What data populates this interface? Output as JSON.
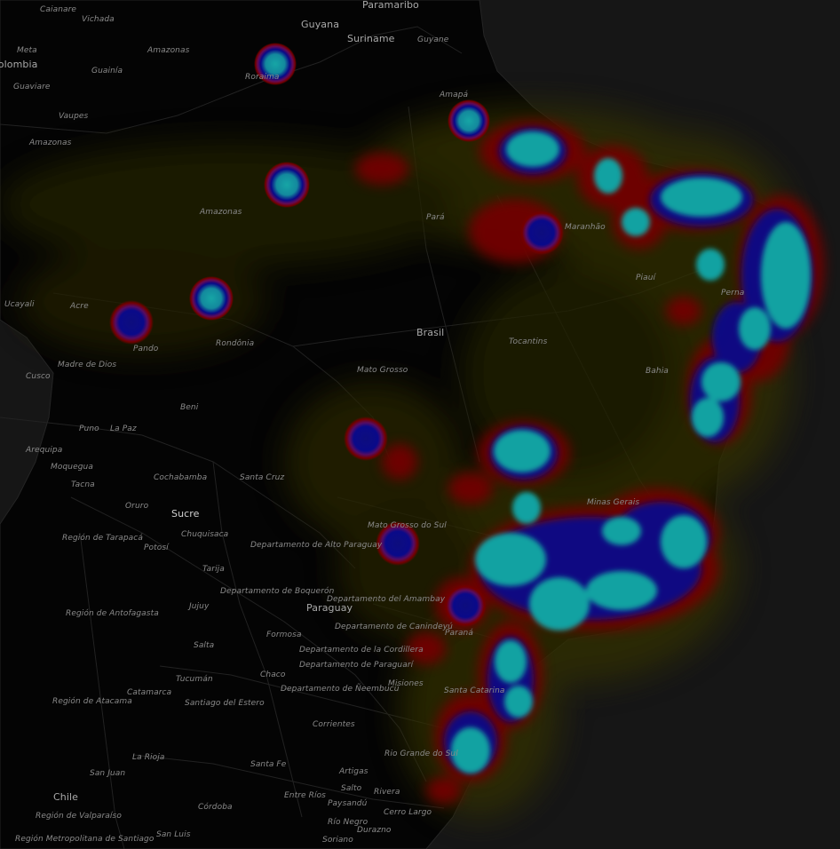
{
  "map": {
    "title": "",
    "colors": {
      "background": "#121212",
      "land": "#050505",
      "ocean": "#1b1b1b",
      "borders": "#2a2a2a",
      "heat_low": "#3d3a00",
      "heat_mid": "#8b0000",
      "heat_high": "#0a0aa8",
      "heat_peak": "#19c6c6"
    },
    "labels": {
      "paramaribo": "Paramaribo",
      "caianare": "Caianare",
      "vichada": "Vichada",
      "guyana": "Guyana",
      "suriname": "Suriname",
      "guyane": "Guyane",
      "meta": "Meta",
      "colombia": "Colombia",
      "amazonas_co": "Amazonas",
      "guainia": "Guainía",
      "guaviare": "Guaviare",
      "vaupes": "Vaupes",
      "roraima": "Roraima",
      "amapa": "Amapá",
      "amazonas_co2": "Amazonas",
      "amazonas_br": "Amazonas",
      "para": "Pará",
      "maranhao": "Maranhão",
      "piaui": "Piauí",
      "pernambuco": "Perna",
      "ucayali": "Ucayali",
      "acre": "Acre",
      "rondonia": "Rondônia",
      "brasil": "Brasil",
      "tocantins": "Tocantins",
      "bahia": "Bahia",
      "madre_de_dios": "Madre de Dios",
      "pando": "Pando",
      "cusco": "Cusco",
      "mato_grosso": "Mato Grosso",
      "beni": "Beni",
      "puno": "Puno",
      "la_paz": "La Paz",
      "arequipa": "Arequipa",
      "moquegua": "Moquegua",
      "tacna": "Tacna",
      "cochabamba": "Cochabamba",
      "santa_cruz": "Santa Cruz",
      "oruro": "Oruro",
      "sucre": "Sucre",
      "chuquisaca": "Chuquisaca",
      "potosi": "Potosí",
      "tarapaca": "Región de Tarapacá",
      "mato_grosso_sul": "Mato Grosso do Sul",
      "alto_paraguay": "Departamento de Alto Paraguay",
      "minas_gerais": "Minas Gerais",
      "tarija": "Tarija",
      "boqueron": "Departamento de Boquerón",
      "amambay": "Departamento del Amambay",
      "paraguay": "Paraguay",
      "antofagasta": "Región de Antofagasta",
      "jujuy": "Jujuy",
      "formosa": "Formosa",
      "canindeyu": "Departamento de Canindeyú",
      "parana": "Paraná",
      "salta": "Salta",
      "cordillera": "Departamento de la Cordillera",
      "paraguari": "Departamento de Paraguarí",
      "tucuman": "Tucumán",
      "chaco": "Chaco",
      "neembucu": "Departamento de Ñeembucú",
      "misiones": "Misiones",
      "catamarca": "Catamarca",
      "santa_catarina": "Santa Catarina",
      "atacama": "Región de Atacama",
      "santiago_estero": "Santiago del Estero",
      "corrientes": "Corrientes",
      "la_rioja": "La Rioja",
      "rio_grande_sul": "Rio Grande do Sul",
      "san_juan": "San Juan",
      "santa_fe": "Santa Fe",
      "artigas": "Artigas",
      "salto": "Salto",
      "chile": "Chile",
      "entre_rios": "Entre Ríos",
      "paysandu": "Paysandú",
      "rivera": "Rivera",
      "valparaiso": "Región de Valparaíso",
      "cordoba": "Córdoba",
      "cerro_largo": "Cerro Largo",
      "rio_negro": "Río Negro",
      "santiago": "Región Metropolitana de Santiago",
      "san_luis": "San Luis",
      "soriano": "Soriano",
      "durazno": "Durazno"
    }
  }
}
